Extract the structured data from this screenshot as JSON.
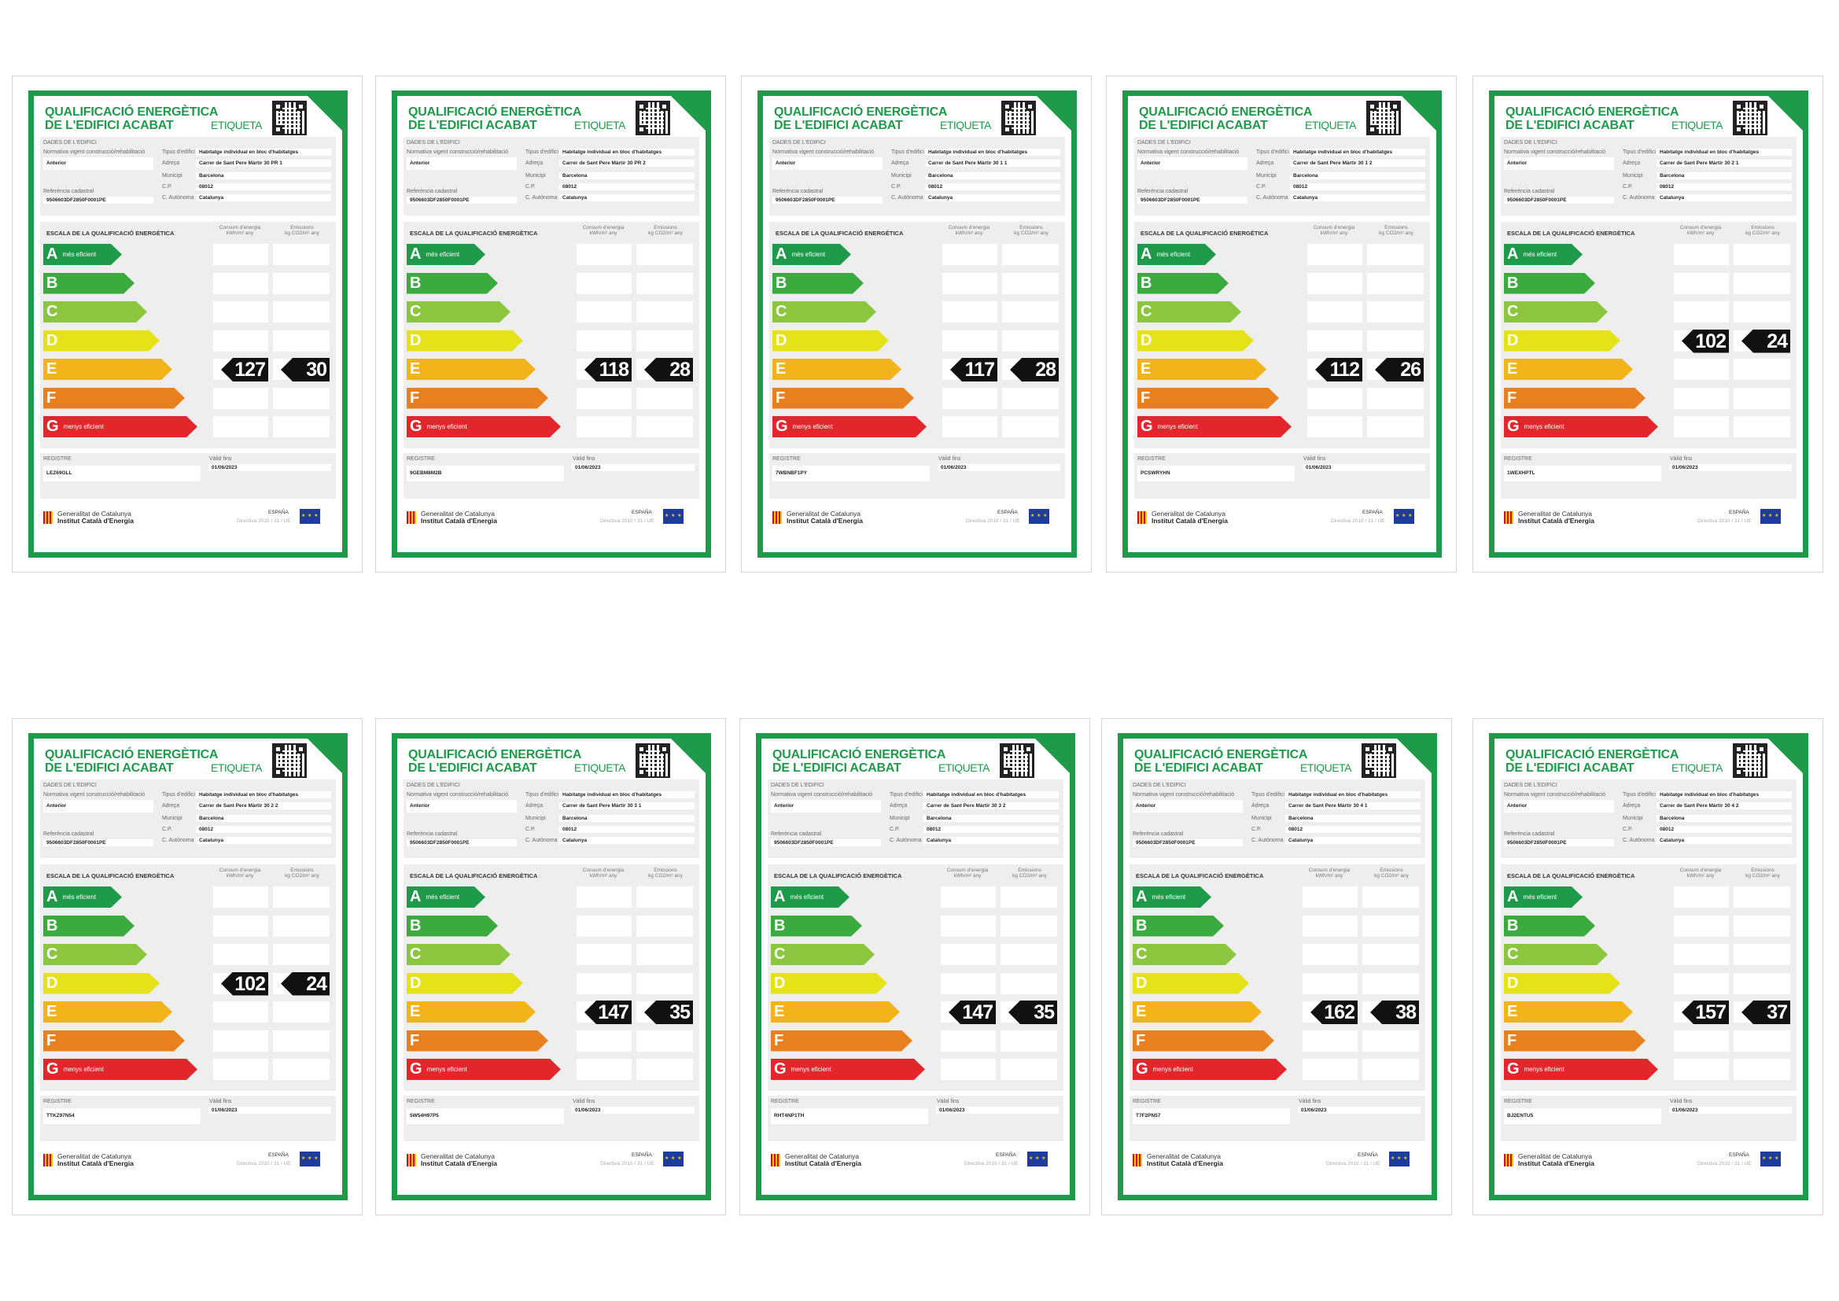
{
  "common": {
    "title_line1": "QUALIFICACIÓ ENERGÈTICA",
    "title_line2": "DE L'EDIFICI ACABAT",
    "etiqueta": "ETIQUETA",
    "dades_header": "DADES DE L'EDIFICI",
    "normativa_label": "Normativa vigent construcció/rehabilitació",
    "normativa_value": "Anterior",
    "referencia_label": "Referència cadastral",
    "referencia_value": "9506603DF2850F0001PE",
    "tipus_label": "Tipus d'edifici",
    "tipus_value": "Habitatge individual en bloc d'habitatges",
    "adreca_label": "Adreça",
    "municipi_label": "Municipi",
    "municipi_value": "Barcelona",
    "cp_label": "C.P.",
    "cp_value": "08012",
    "ca_label": "C. Autònoma",
    "ca_value": "Catalunya",
    "escala_header": "ESCALA DE LA QUALIFICACIÓ ENERGÈTICA",
    "consum_header": "Consum d'energia",
    "consum_unit": "kWh/m² any",
    "emissions_header": "Emissions",
    "emissions_unit": "kg CO2/m² any",
    "mes_eficient": "més eficient",
    "menys_eficient": "menys eficient",
    "registre_label": "REGISTRE",
    "valid_label": "Vàlid fins",
    "valid_value": "01/06/2023",
    "gen_line1": "Generalitat de Catalunya",
    "gen_line2": "Institut Català d'Energia",
    "espana": "ESPAÑA",
    "directiva": "Directiva 2010 / 31 / UE",
    "letters": [
      "A",
      "B",
      "C",
      "D",
      "E",
      "F",
      "G"
    ],
    "colors": [
      "#1f9a4a",
      "#3bab3f",
      "#8cc63e",
      "#e6e21a",
      "#f2b31b",
      "#e8801f",
      "#e3262b"
    ]
  },
  "labels": [
    {
      "adreca": "Carrer de Sant Pere Màrtir 30 PR 1",
      "registre": "LEZ69GLL",
      "class": "E",
      "consum": "127",
      "emissions": "30"
    },
    {
      "adreca": "Carrer de Sant Pere Màrtir 30 PR 2",
      "registre": "9GEBM8M2B",
      "class": "E",
      "consum": "118",
      "emissions": "28"
    },
    {
      "adreca": "Carrer de Sant Pere Màrtir 30 1 1",
      "registre": "7WBNBF1PY",
      "class": "E",
      "consum": "117",
      "emissions": "28"
    },
    {
      "adreca": "Carrer de Sant Pere Màrtir 30 1 2",
      "registre": "PCSWRYHN",
      "class": "E",
      "consum": "112",
      "emissions": "26"
    },
    {
      "adreca": "Carrer de Sant Pere Màrtir 30 2 1",
      "registre": "1WEXHPTL",
      "class": "D",
      "consum": "102",
      "emissions": "24"
    },
    {
      "adreca": "Carrer de Sant Pere Màrtir 30 2 2",
      "registre": "TTKZ97N54",
      "class": "D",
      "consum": "102",
      "emissions": "24"
    },
    {
      "adreca": "Carrer de Sant Pere Màrtir 30 3 1",
      "registre": "5W54H97P5",
      "class": "E",
      "consum": "147",
      "emissions": "35"
    },
    {
      "adreca": "Carrer de Sant Pere Màrtir 30 3 2",
      "registre": "RHT4NP1TH",
      "class": "E",
      "consum": "147",
      "emissions": "35"
    },
    {
      "adreca": "Carrer de Sant Pere Màrtir 30 4 1",
      "registre": "T7F2PN57",
      "class": "E",
      "consum": "162",
      "emissions": "38"
    },
    {
      "adreca": "Carrer de Sant Pere Màrtir 30 4 2",
      "registre": "BJ2ENTU5",
      "class": "E",
      "consum": "157",
      "emissions": "37"
    }
  ]
}
